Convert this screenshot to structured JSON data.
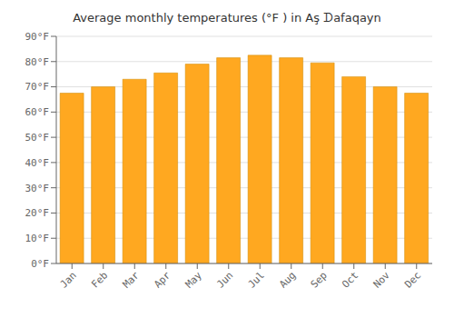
{
  "chart_data": {
    "type": "bar",
    "title": "Average monthly temperatures (°F ) in Aş ᗪafaqayn",
    "categories": [
      "Jan",
      "Feb",
      "Mar",
      "Apr",
      "May",
      "Jun",
      "Jul",
      "Aug",
      "Sep",
      "Oct",
      "Nov",
      "Dec"
    ],
    "values": [
      67.5,
      70,
      73,
      75.5,
      79,
      81.5,
      82.5,
      81.5,
      79.5,
      74,
      70,
      67.5
    ],
    "color": "#FFA820",
    "ylim": [
      0,
      90
    ],
    "yticks": [
      {
        "value": 0,
        "label": "0°F"
      },
      {
        "value": 10,
        "label": "10°F"
      },
      {
        "value": 20,
        "label": "20°F"
      },
      {
        "value": 30,
        "label": "30°F"
      },
      {
        "value": 40,
        "label": "40°F"
      },
      {
        "value": 50,
        "label": "50°F"
      },
      {
        "value": 60,
        "label": "60°F"
      },
      {
        "value": 70,
        "label": "70°F"
      },
      {
        "value": 80,
        "label": "80°F"
      },
      {
        "value": 90,
        "label": "90°F"
      }
    ],
    "grid": true
  }
}
